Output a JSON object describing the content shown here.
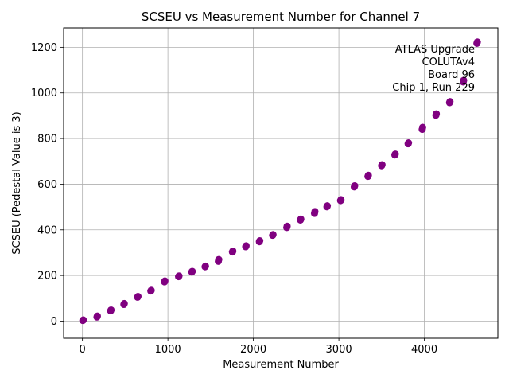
{
  "chart_data": {
    "type": "scatter",
    "title": "SCSEU vs Measurement Number for Channel 7",
    "xlabel": "Measurement Number",
    "ylabel": "SCSEU (Pedestal Value is 3)",
    "xlim": [
      -220,
      4860
    ],
    "ylim": [
      -75,
      1285
    ],
    "xticks": [
      0,
      1000,
      2000,
      3000,
      4000
    ],
    "yticks": [
      0,
      200,
      400,
      600,
      800,
      1000,
      1200
    ],
    "grid": true,
    "marker_color": "#800080",
    "annotation": [
      "ATLAS Upgrade",
      "COLUTAv4",
      "Board 96",
      "Chip 1, Run 229"
    ],
    "x": [
      5,
      10,
      170,
      175,
      330,
      335,
      485,
      490,
      645,
      650,
      800,
      805,
      960,
      965,
      1125,
      1130,
      1280,
      1285,
      1435,
      1440,
      1590,
      1595,
      1755,
      1760,
      1910,
      1915,
      2070,
      2075,
      2225,
      2230,
      2390,
      2395,
      2550,
      2555,
      2715,
      2720,
      2860,
      2865,
      3020,
      3025,
      3180,
      3185,
      3340,
      3345,
      3500,
      3505,
      3655,
      3660,
      3810,
      3815,
      3975,
      3980,
      4135,
      4140,
      4295,
      4300,
      4455,
      4460,
      4615,
      4620
    ],
    "y": [
      3,
      5,
      18,
      22,
      45,
      49,
      73,
      77,
      105,
      108,
      132,
      135,
      172,
      176,
      195,
      198,
      215,
      218,
      238,
      241,
      262,
      270,
      303,
      307,
      326,
      330,
      348,
      352,
      376,
      379,
      410,
      416,
      443,
      447,
      472,
      480,
      501,
      505,
      528,
      532,
      588,
      593,
      634,
      639,
      681,
      685,
      728,
      732,
      777,
      781,
      840,
      849,
      902,
      908,
      957,
      962,
      1048,
      1055,
      1217,
      1223
    ]
  }
}
